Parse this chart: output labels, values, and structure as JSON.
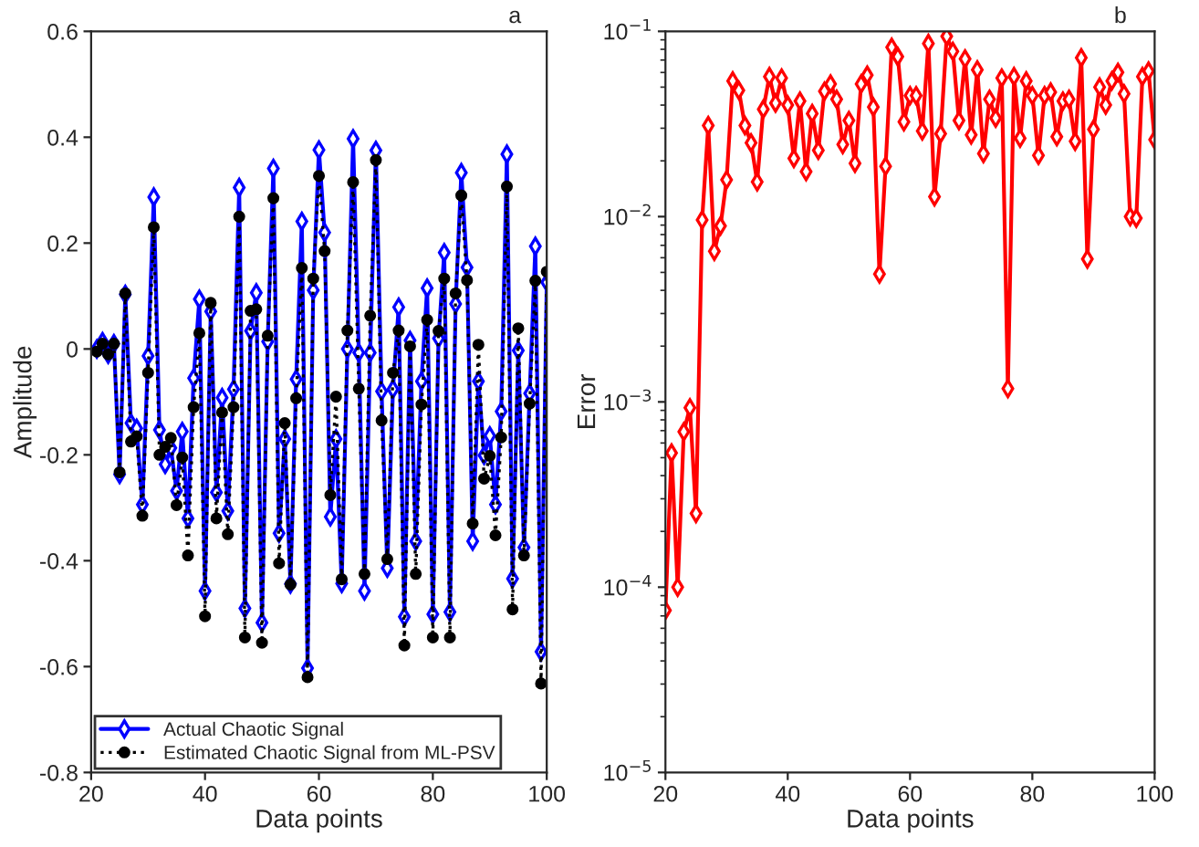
{
  "chart_data": [
    {
      "type": "line",
      "xlabel": "Data points",
      "ylabel": "Amplitude",
      "annotations": [
        "a"
      ],
      "x": [
        21,
        22,
        23,
        24,
        25,
        26,
        27,
        28,
        29,
        30,
        31,
        32,
        33,
        34,
        35,
        36,
        37,
        38,
        39,
        40,
        41,
        42,
        43,
        44,
        45,
        46,
        47,
        48,
        49,
        50,
        51,
        52,
        53,
        54,
        55,
        56,
        57,
        58,
        59,
        60,
        61,
        62,
        63,
        64,
        65,
        66,
        67,
        68,
        69,
        70,
        71,
        72,
        73,
        74,
        75,
        76,
        77,
        78,
        79,
        80,
        81,
        82,
        83,
        84,
        85,
        86,
        87,
        88,
        89,
        90,
        91,
        92,
        93,
        94,
        95,
        96,
        97,
        98,
        99,
        100
      ],
      "series": [
        {
          "name": "Actual Chaotic Signal",
          "color": "#0000ff",
          "marker": "diamond",
          "line_style": "solid",
          "values": [
            0.0,
            0.014,
            -0.01,
            0.01,
            -0.237,
            0.103,
            -0.14,
            -0.15,
            -0.294,
            -0.013,
            0.287,
            -0.153,
            -0.218,
            -0.187,
            -0.268,
            -0.156,
            -0.32,
            -0.055,
            0.094,
            -0.457,
            0.071,
            -0.271,
            -0.092,
            -0.306,
            -0.076,
            0.305,
            -0.49,
            0.034,
            0.106,
            -0.517,
            0.014,
            0.341,
            -0.348,
            -0.17,
            -0.444,
            -0.057,
            0.241,
            -0.603,
            0.111,
            0.376,
            0.22,
            -0.317,
            -0.17,
            -0.443,
            0.0,
            0.397,
            -0.007,
            -0.457,
            -0.007,
            0.375,
            -0.08,
            -0.414,
            -0.076,
            0.079,
            -0.506,
            0.016,
            -0.363,
            -0.061,
            0.115,
            -0.501,
            0.02,
            0.182,
            -0.497,
            0.085,
            0.333,
            0.154,
            -0.363,
            -0.061,
            -0.201,
            -0.164,
            -0.294,
            -0.118,
            0.368,
            -0.434,
            -0.003,
            -0.375,
            -0.084,
            0.194,
            -0.572,
            0.126
          ]
        },
        {
          "name": "Estimated Chaotic Signal from ML-PSV",
          "color": "#000000",
          "marker": "circle",
          "line_style": "dotted",
          "values": [
            -0.005,
            0.01,
            -0.01,
            0.01,
            -0.233,
            0.105,
            -0.175,
            -0.165,
            -0.315,
            -0.045,
            0.23,
            -0.2,
            -0.185,
            -0.168,
            -0.295,
            -0.205,
            -0.39,
            -0.11,
            0.03,
            -0.505,
            0.087,
            -0.32,
            -0.12,
            -0.35,
            -0.11,
            0.25,
            -0.545,
            0.072,
            0.075,
            -0.555,
            0.025,
            0.285,
            -0.405,
            -0.14,
            -0.445,
            -0.093,
            0.153,
            -0.62,
            0.133,
            0.327,
            0.185,
            -0.276,
            -0.09,
            -0.435,
            0.035,
            0.315,
            -0.075,
            -0.425,
            0.063,
            0.357,
            -0.135,
            -0.397,
            -0.045,
            0.035,
            -0.56,
            0.005,
            -0.425,
            -0.105,
            0.055,
            -0.545,
            0.034,
            0.133,
            -0.545,
            0.105,
            0.29,
            0.13,
            -0.33,
            0.008,
            -0.245,
            -0.202,
            -0.352,
            -0.167,
            0.307,
            -0.492,
            0.039,
            -0.39,
            -0.103,
            0.129,
            -0.632,
            0.146
          ]
        }
      ],
      "xlim": [
        20,
        100
      ],
      "xticks": [
        20,
        40,
        60,
        80,
        100
      ],
      "ylim": [
        -0.8,
        0.6
      ],
      "yticks": [
        -0.8,
        -0.6,
        -0.4,
        -0.2,
        0,
        0.2,
        0.4,
        0.6
      ],
      "legend": "bottom left",
      "grid": false
    },
    {
      "type": "line",
      "xlabel": "Data points",
      "ylabel": "Error",
      "annotations": [
        "b"
      ],
      "log": "y",
      "x": [
        20,
        21,
        22,
        23,
        24,
        25,
        26,
        27,
        28,
        29,
        30,
        31,
        32,
        33,
        34,
        35,
        36,
        37,
        38,
        39,
        40,
        41,
        42,
        43,
        44,
        45,
        46,
        47,
        48,
        49,
        50,
        51,
        52,
        53,
        54,
        55,
        56,
        57,
        58,
        59,
        60,
        61,
        62,
        63,
        64,
        65,
        66,
        67,
        68,
        69,
        70,
        71,
        72,
        73,
        74,
        75,
        76,
        77,
        78,
        79,
        80,
        81,
        82,
        83,
        84,
        85,
        86,
        87,
        88,
        89,
        90,
        91,
        92,
        93,
        94,
        95,
        96,
        97,
        98,
        99,
        100
      ],
      "series": [
        {
          "color": "#ff0000",
          "marker": "diamond",
          "line_style": "solid",
          "values": [
            7.5e-05,
            0.00053,
            0.0001,
            0.00069,
            0.00093,
            0.00025,
            0.0096,
            0.031,
            0.0065,
            0.0089,
            0.0158,
            0.054,
            0.048,
            0.031,
            0.025,
            0.0154,
            0.038,
            0.057,
            0.041,
            0.056,
            0.04,
            0.0206,
            0.042,
            0.0175,
            0.036,
            0.0228,
            0.0475,
            0.052,
            0.043,
            0.0245,
            0.033,
            0.0194,
            0.052,
            0.058,
            0.039,
            0.0049,
            0.0187,
            0.082,
            0.073,
            0.0325,
            0.045,
            0.045,
            0.029,
            0.086,
            0.0128,
            0.028,
            0.094,
            0.078,
            0.033,
            0.071,
            0.0276,
            0.062,
            0.0219,
            0.043,
            0.034,
            0.056,
            0.00118,
            0.057,
            0.0265,
            0.054,
            0.045,
            0.0214,
            0.045,
            0.047,
            0.027,
            0.042,
            0.043,
            0.0255,
            0.072,
            0.0059,
            0.0296,
            0.05,
            0.04,
            0.054,
            0.06,
            0.046,
            0.01,
            0.0098,
            0.057,
            0.061,
            0.026
          ]
        }
      ],
      "xlim": [
        20,
        100
      ],
      "xticks": [
        20,
        40,
        60,
        80,
        100
      ],
      "ylim": [
        1e-05,
        0.1
      ],
      "yticks": [
        {
          "value": 1e-05,
          "label": "10$^{−5}$"
        },
        {
          "value": 0.0001,
          "label": "10$^{−4}$"
        },
        {
          "value": 0.001,
          "label": "10$^{−3}$"
        },
        {
          "value": 0.01,
          "label": "10$^{−2}$"
        },
        {
          "value": 0.1,
          "label": "10$^{−1}$"
        }
      ],
      "legend": false,
      "grid": false
    }
  ]
}
